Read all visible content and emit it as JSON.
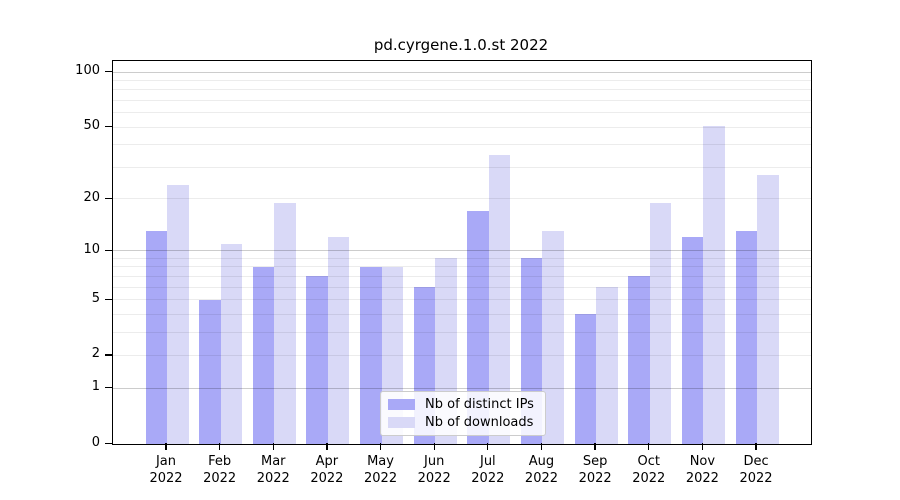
{
  "chart_data": {
    "type": "bar",
    "title": "pd.cyrgene.1.0.st 2022",
    "categories": [
      "Jan",
      "Feb",
      "Mar",
      "Apr",
      "May",
      "Jun",
      "Jul",
      "Aug",
      "Sep",
      "Oct",
      "Nov",
      "Dec"
    ],
    "x_tick_second_line": "2022",
    "series": [
      {
        "name": "Nb of distinct IPs",
        "color": "#a9a9f7",
        "values": [
          13,
          5,
          8,
          7,
          8,
          6,
          17,
          9,
          4,
          7,
          12,
          13
        ]
      },
      {
        "name": "Nb of downloads",
        "color": "#d9d9f7",
        "values": [
          24,
          11,
          19,
          12,
          8,
          9,
          35,
          13,
          6,
          19,
          51,
          27
        ]
      }
    ],
    "yscale": "log1p",
    "ylabel": "",
    "xlabel": "",
    "y_ticks": [
      0,
      1,
      2,
      5,
      10,
      20,
      50,
      100
    ],
    "y_major_gridlines": [
      1,
      10,
      100
    ],
    "y_minor_gridlines": [
      2,
      3,
      4,
      5,
      6,
      7,
      8,
      9,
      20,
      30,
      40,
      50,
      60,
      70,
      80,
      90
    ],
    "ylim": [
      0,
      115
    ],
    "grid": "on",
    "legend_position": "lower center"
  },
  "colors": {
    "background": "#ffffff",
    "axis": "#000000",
    "major_grid": "#cccccc",
    "minor_grid": "#ececec",
    "bar_distinct_ips": "#a9a9f7",
    "bar_downloads": "#d9d9f7"
  }
}
